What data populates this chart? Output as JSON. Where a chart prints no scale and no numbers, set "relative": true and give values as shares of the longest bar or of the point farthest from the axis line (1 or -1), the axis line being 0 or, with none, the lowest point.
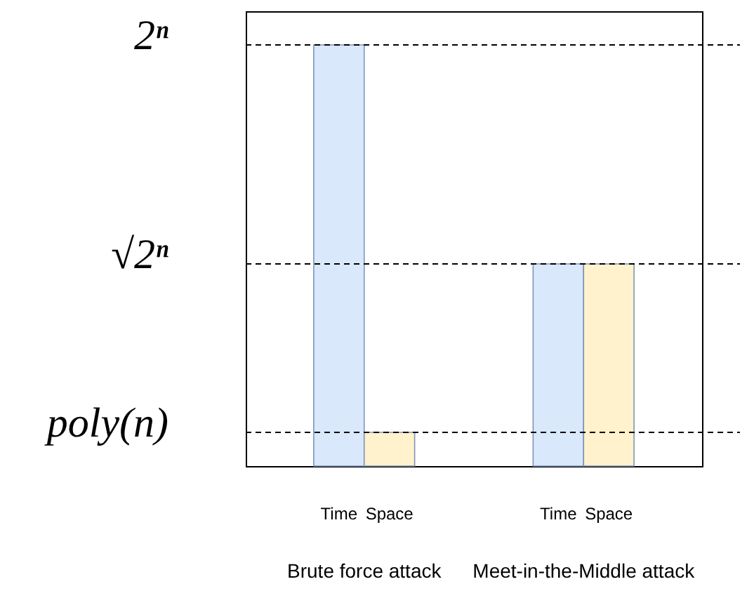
{
  "chart_data": {
    "type": "bar",
    "relative": true,
    "categories": [
      "Brute force attack",
      "Meet-in-the-Middle attack"
    ],
    "series": [
      {
        "name": "Time",
        "color": "#dae8fc",
        "values": [
          1,
          0.48
        ]
      },
      {
        "name": "Space",
        "color": "#fff2cc",
        "values": [
          0.08,
          0.48
        ]
      }
    ],
    "ref_lines": [
      {
        "axis": "y",
        "value": 1,
        "label": "2ⁿ",
        "line_style": "dashed",
        "color": "#000000"
      },
      {
        "axis": "y",
        "value": 0.48,
        "label": "√2ⁿ",
        "line_style": "dashed",
        "color": "#000000"
      },
      {
        "axis": "y",
        "value": 0.08,
        "label": "poly(n)",
        "line_style": "dashed",
        "color": "#000000"
      }
    ],
    "tick_labels": "x"
  }
}
